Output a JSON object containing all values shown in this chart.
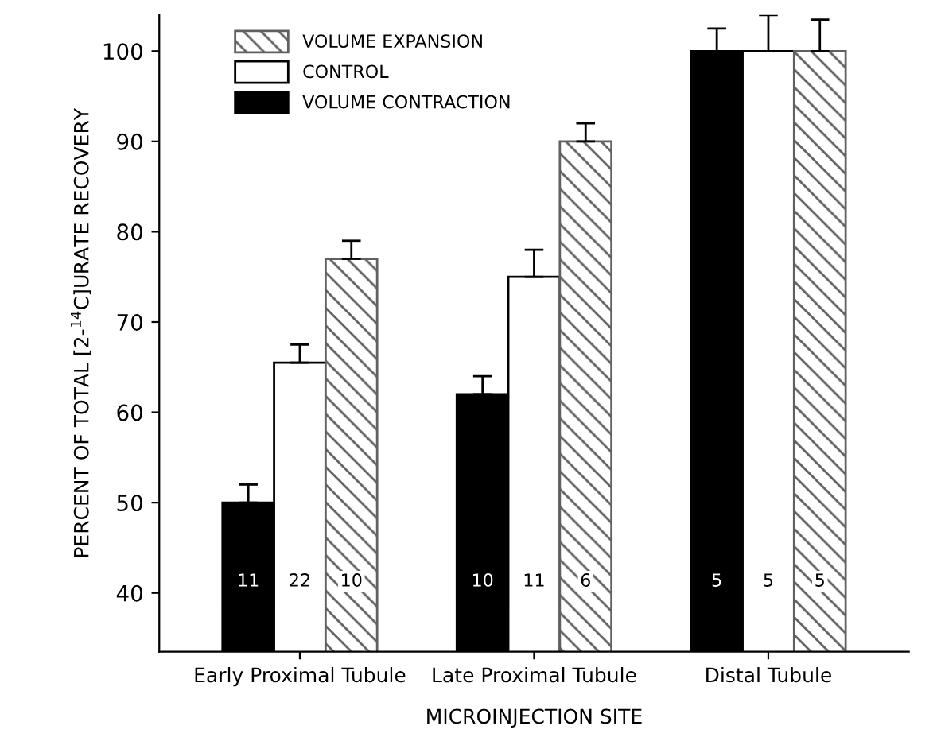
{
  "chart_data": {
    "type": "bar",
    "xlabel": "MICROINJECTION SITE",
    "ylabel": "PERCENT OF TOTAL [2-$^{14}$C]URATE RECOVERY",
    "categories": [
      "Early Proximal Tubule",
      "Late Proximal Tubule",
      "Distal Tubule"
    ],
    "series": [
      {
        "name": "VOLUME CONTRACTION",
        "color": "#000000",
        "values": [
          50,
          62,
          100
        ],
        "errors": [
          [
            50,
            52
          ],
          [
            62,
            64
          ],
          [
            100,
            102.5
          ]
        ]
      },
      {
        "name": "CONTROL",
        "color": "#ffffff",
        "values": [
          65.5,
          75,
          100
        ],
        "errors": [
          [
            65.5,
            67.5
          ],
          [
            75,
            78
          ],
          [
            100,
            104
          ]
        ]
      },
      {
        "name": "VOLUME EXPANSION",
        "color": "#606060",
        "values": [
          77,
          90,
          100
        ],
        "errors": [
          [
            77,
            79
          ],
          [
            90,
            92
          ],
          [
            100,
            103.5
          ]
        ]
      }
    ],
    "annotations": [
      "11",
      "22",
      "10",
      "10",
      "11",
      "6",
      "5",
      "5",
      "5"
    ],
    "ylim": [
      33.5,
      104
    ],
    "yticks": [
      40,
      50,
      60,
      70,
      80,
      90,
      100
    ],
    "grid": false,
    "legend": "top left"
  }
}
